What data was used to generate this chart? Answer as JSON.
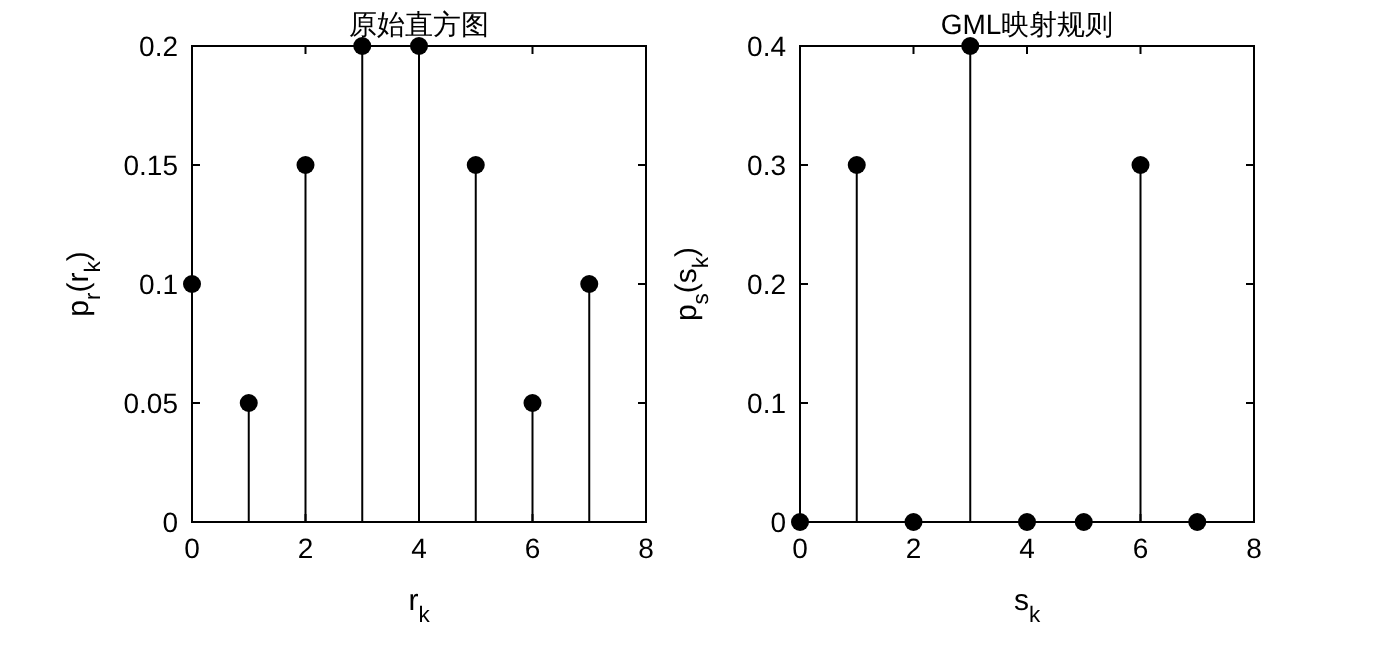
{
  "chart_data": [
    {
      "type": "lollipop",
      "title": "原始直方图",
      "xlabel": "r$_{k}$",
      "ylabel": "p$_{r}$(r$_{k}$)",
      "x": [
        0,
        1,
        2,
        3,
        4,
        5,
        6,
        7
      ],
      "values": [
        0.1,
        0.05,
        0.15,
        0.2,
        0.2,
        0.15,
        0.05,
        0.1
      ],
      "color": "#000000",
      "marker": "circle",
      "xlim": [
        0,
        8
      ],
      "xticks": [
        0,
        2,
        4,
        6,
        8
      ],
      "ylim": [
        0,
        0.2
      ],
      "yticks": [
        0,
        0.05,
        0.1,
        0.15,
        0.2
      ]
    },
    {
      "type": "lollipop",
      "title": "GML映射规则",
      "xlabel": "s$_{k}$",
      "ylabel": "p$_{s}$(s$_{k}$)",
      "x": [
        0,
        1,
        2,
        3,
        4,
        5,
        6,
        7
      ],
      "values": [
        0,
        0.3,
        0,
        0.4,
        0,
        0,
        0.3,
        0
      ],
      "color": "#000000",
      "marker": "circle",
      "xlim": [
        0,
        8
      ],
      "xticks": [
        0,
        2,
        4,
        6,
        8
      ],
      "ylim": [
        0,
        0.4
      ],
      "yticks": [
        0,
        0.1,
        0.2,
        0.3,
        0.4
      ]
    }
  ]
}
